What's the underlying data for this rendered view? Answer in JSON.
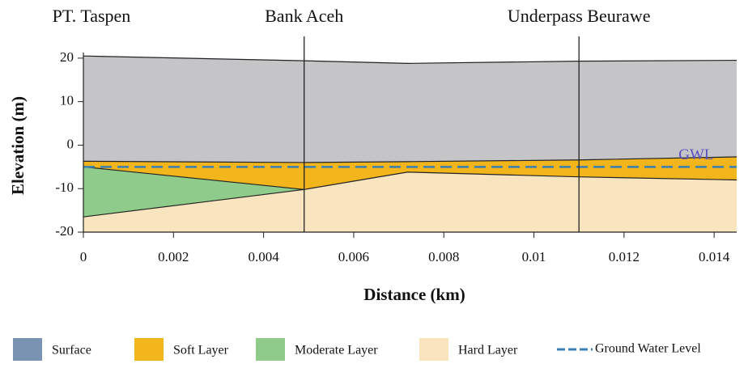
{
  "chart_data": {
    "type": "cross-section",
    "xlabel": "Distance (km)",
    "ylabel": "Elevation (m)",
    "xlim": [
      0,
      0.0145
    ],
    "ylim": [
      -20,
      25
    ],
    "xticks": [
      0,
      0.002,
      0.004,
      0.006,
      0.008,
      0.01,
      0.012,
      0.014
    ],
    "yticks": [
      -20,
      -10,
      0,
      10,
      20
    ],
    "x": [
      0,
      0.0049,
      0.0072,
      0.011,
      0.0145
    ],
    "series": [
      {
        "name": "Surface",
        "color": "#c5c4c6",
        "legend_color": "#7a93b3",
        "top": [
          20.5,
          19.4,
          18.8,
          19.3,
          19.5
        ],
        "bottom": [
          -3.7,
          -4,
          -3.8,
          -3.4,
          -2.7
        ]
      },
      {
        "name": "Soft Layer",
        "color": "#f2b51c",
        "top": [
          -3.7,
          -4,
          -3.8,
          -3.4,
          -2.7
        ],
        "bottom": [
          -5,
          -10.2,
          -6.2,
          -7.3,
          -8
        ]
      },
      {
        "name": "Moderate Layer",
        "color": "#8fcb8a",
        "top": [
          -5,
          -10.2,
          null,
          null,
          null
        ],
        "bottom": [
          -16.5,
          -10.2,
          null,
          null,
          null
        ]
      },
      {
        "name": "Hard Layer",
        "color": "#f8e5bf",
        "top": [
          -16.5,
          -10.2,
          -6.2,
          -7.3,
          -8
        ]
      }
    ],
    "water_level": {
      "name": "Ground Water Level",
      "value": -5,
      "color": "#3b7fb3",
      "label": "GWL",
      "label_x": 0.0136,
      "label_y": -2.5,
      "label_color": "#5a4fc0"
    },
    "locations": [
      {
        "name": "PT. Taspen",
        "x": 0
      },
      {
        "name": "Bank Aceh",
        "x": 0.0049
      },
      {
        "name": "Underpass Beurawe",
        "x": 0.011
      }
    ]
  }
}
